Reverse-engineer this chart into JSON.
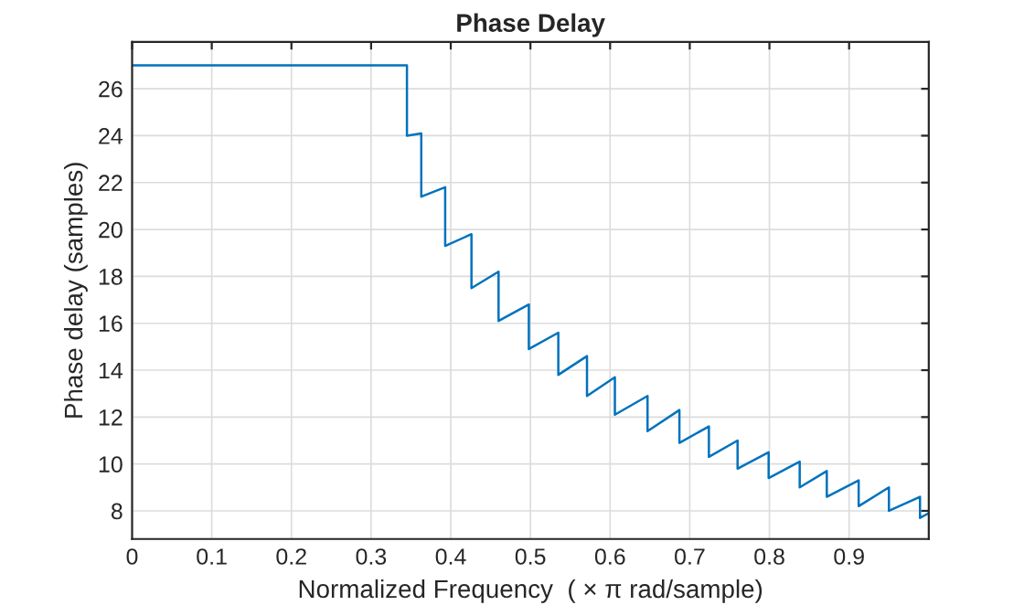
{
  "chart_data": {
    "type": "line",
    "title": "Phase Delay",
    "xlabel": "Normalized Frequency  ( × π rad/sample)",
    "ylabel": "Phase delay (samples)",
    "series": [
      {
        "color": "#0072bd",
        "x": [
          0,
          0.345,
          0.345,
          0.363,
          0.363,
          0.393,
          0.393,
          0.426,
          0.426,
          0.46,
          0.46,
          0.498,
          0.498,
          0.535,
          0.535,
          0.571,
          0.571,
          0.606,
          0.606,
          0.647,
          0.647,
          0.687,
          0.687,
          0.724,
          0.724,
          0.76,
          0.76,
          0.799,
          0.799,
          0.838,
          0.838,
          0.872,
          0.872,
          0.912,
          0.912,
          0.95,
          0.95,
          0.989,
          0.989,
          1.0
        ],
        "values": [
          27.0,
          27.0,
          24.0,
          24.1,
          21.4,
          21.8,
          19.3,
          19.8,
          17.5,
          18.2,
          16.1,
          16.8,
          14.9,
          15.6,
          13.8,
          14.6,
          12.9,
          13.7,
          12.1,
          12.9,
          11.4,
          12.3,
          10.9,
          11.6,
          10.3,
          11.0,
          9.8,
          10.5,
          9.4,
          10.1,
          9.0,
          9.7,
          8.6,
          9.3,
          8.2,
          9.0,
          8.0,
          8.6,
          7.7,
          7.9
        ]
      }
    ],
    "xlim": [
      0,
      1
    ],
    "ylim": [
      6.8,
      28
    ],
    "xticks": [
      0,
      0.1,
      0.2,
      0.3,
      0.4,
      0.5,
      0.6,
      0.7,
      0.8,
      0.9
    ],
    "yticks": [
      8,
      10,
      12,
      14,
      16,
      18,
      20,
      22,
      24,
      26
    ],
    "grid": true,
    "marker": "none",
    "line_style": "solid"
  }
}
